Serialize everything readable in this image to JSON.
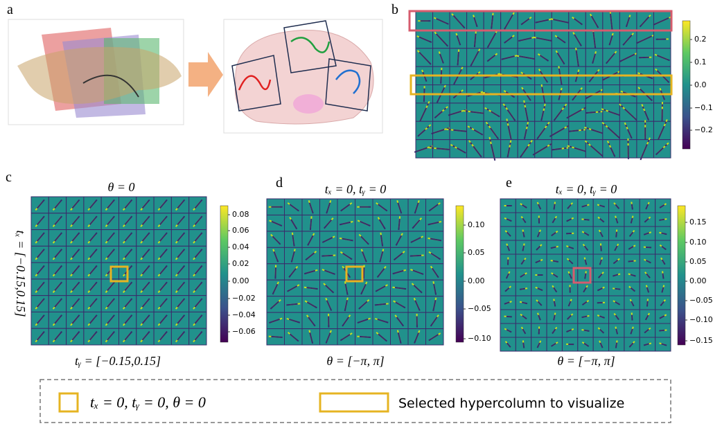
{
  "panels": {
    "a": {
      "label": "a"
    },
    "b": {
      "label": "b",
      "colorbar_ticks": [
        "0.2",
        "0.1",
        "0.0",
        "−0.1",
        "−0.2"
      ]
    },
    "c": {
      "label": "c",
      "title": "θ = 0",
      "x_label": "tᵧ = [−0.15,0.15]",
      "y_label": "tₓ = [−0.15,0.15]",
      "colorbar_ticks": [
        "0.08",
        "0.06",
        "0.04",
        "0.02",
        "0.00",
        "−0.02",
        "−0.04",
        "−0.06"
      ]
    },
    "d": {
      "label": "d",
      "title": "tₓ = 0, tᵧ = 0",
      "x_label": "θ = [−π, π]",
      "colorbar_ticks": [
        "0.10",
        "0.05",
        "0.00",
        "−0.05",
        "−0.10"
      ]
    },
    "e": {
      "label": "e",
      "title": "tₓ = 0, tᵧ = 0",
      "x_label": "θ = [−π, π]",
      "colorbar_ticks": [
        "0.15",
        "0.10",
        "0.05",
        "0.00",
        "−0.05",
        "−0.10",
        "−0.15"
      ]
    }
  },
  "legend": {
    "items": [
      "tₓ = 0, tᵧ = 0, θ = 0",
      "Selected hypercolumn to visualize"
    ]
  }
}
